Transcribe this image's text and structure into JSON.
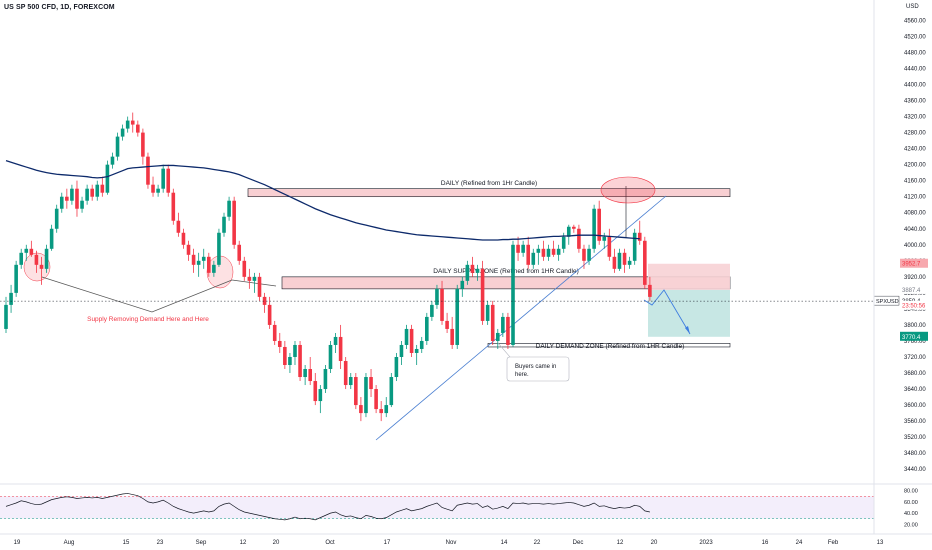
{
  "chart_data": {
    "type": "candlestick",
    "title": "US SP 500 CFD, 1D, FOREXCOM",
    "currency_label": "USD",
    "y_ticks": [
      3440,
      3480,
      3520,
      3560,
      3600,
      3640,
      3680,
      3720,
      3760,
      3800,
      3840,
      3880,
      3920,
      3960,
      4000,
      4040,
      4080,
      4120,
      4160,
      4200,
      4240,
      4280,
      4320,
      4360,
      4400,
      4440,
      4480,
      4520,
      4560
    ],
    "y_range": [
      3400,
      4600
    ],
    "x_ticks": [
      "19",
      "Aug",
      "15",
      "23",
      "Sep",
      "12",
      "20",
      "Oct",
      "17",
      "Nov",
      "14",
      "22",
      "Dec",
      "12",
      "20",
      "2023",
      "16",
      "24",
      "Feb",
      "13"
    ],
    "candles": [
      [
        3790,
        3870,
        3780,
        3850
      ],
      [
        3850,
        3900,
        3830,
        3880
      ],
      [
        3880,
        3960,
        3870,
        3950
      ],
      [
        3950,
        3990,
        3940,
        3980
      ],
      [
        3980,
        4000,
        3960,
        3990
      ],
      [
        3990,
        4010,
        3970,
        3975
      ],
      [
        3975,
        3985,
        3930,
        3950
      ],
      [
        3950,
        3970,
        3900,
        3940
      ],
      [
        3940,
        4000,
        3930,
        3990
      ],
      [
        3990,
        4050,
        3985,
        4040
      ],
      [
        4040,
        4100,
        4030,
        4090
      ],
      [
        4090,
        4130,
        4080,
        4120
      ],
      [
        4120,
        4140,
        4090,
        4110
      ],
      [
        4110,
        4150,
        4100,
        4140
      ],
      [
        4140,
        4160,
        4070,
        4090
      ],
      [
        4090,
        4120,
        4080,
        4110
      ],
      [
        4110,
        4150,
        4100,
        4140
      ],
      [
        4140,
        4150,
        4110,
        4120
      ],
      [
        4120,
        4160,
        4110,
        4150
      ],
      [
        4150,
        4170,
        4120,
        4130
      ],
      [
        4130,
        4210,
        4125,
        4200
      ],
      [
        4200,
        4230,
        4190,
        4220
      ],
      [
        4220,
        4280,
        4210,
        4270
      ],
      [
        4270,
        4300,
        4260,
        4290
      ],
      [
        4290,
        4320,
        4280,
        4310
      ],
      [
        4310,
        4330,
        4280,
        4300
      ],
      [
        4300,
        4310,
        4270,
        4280
      ],
      [
        4280,
        4290,
        4200,
        4220
      ],
      [
        4220,
        4230,
        4140,
        4150
      ],
      [
        4150,
        4170,
        4120,
        4130
      ],
      [
        4130,
        4150,
        4120,
        4140
      ],
      [
        4140,
        4200,
        4130,
        4190
      ],
      [
        4190,
        4200,
        4120,
        4130
      ],
      [
        4130,
        4140,
        4050,
        4060
      ],
      [
        4060,
        4080,
        4020,
        4030
      ],
      [
        4030,
        4040,
        3990,
        4000
      ],
      [
        4000,
        4010,
        3960,
        3975
      ],
      [
        3975,
        3990,
        3930,
        3950
      ],
      [
        3950,
        3980,
        3920,
        3960
      ],
      [
        3960,
        3990,
        3940,
        3970
      ],
      [
        3970,
        3980,
        3920,
        3930
      ],
      [
        3930,
        3960,
        3920,
        3950
      ],
      [
        3950,
        4040,
        3945,
        4030
      ],
      [
        4030,
        4080,
        4020,
        4070
      ],
      [
        4070,
        4120,
        4060,
        4110
      ],
      [
        4110,
        4120,
        3990,
        4000
      ],
      [
        4000,
        4010,
        3950,
        3960
      ],
      [
        3960,
        3970,
        3910,
        3920
      ],
      [
        3920,
        3940,
        3890,
        3910
      ],
      [
        3910,
        3930,
        3880,
        3920
      ],
      [
        3920,
        3930,
        3860,
        3870
      ],
      [
        3870,
        3880,
        3830,
        3850
      ],
      [
        3850,
        3870,
        3790,
        3800
      ],
      [
        3800,
        3810,
        3750,
        3760
      ],
      [
        3760,
        3780,
        3730,
        3745
      ],
      [
        3745,
        3760,
        3690,
        3700
      ],
      [
        3700,
        3730,
        3680,
        3720
      ],
      [
        3720,
        3760,
        3700,
        3750
      ],
      [
        3750,
        3760,
        3660,
        3670
      ],
      [
        3670,
        3700,
        3650,
        3690
      ],
      [
        3690,
        3720,
        3650,
        3660
      ],
      [
        3660,
        3680,
        3600,
        3610
      ],
      [
        3610,
        3650,
        3580,
        3640
      ],
      [
        3640,
        3700,
        3630,
        3690
      ],
      [
        3690,
        3760,
        3680,
        3750
      ],
      [
        3750,
        3780,
        3730,
        3770
      ],
      [
        3770,
        3800,
        3690,
        3710
      ],
      [
        3710,
        3720,
        3640,
        3650
      ],
      [
        3650,
        3680,
        3640,
        3670
      ],
      [
        3670,
        3680,
        3590,
        3600
      ],
      [
        3600,
        3620,
        3560,
        3580
      ],
      [
        3580,
        3680,
        3570,
        3670
      ],
      [
        3670,
        3690,
        3620,
        3640
      ],
      [
        3640,
        3650,
        3580,
        3590
      ],
      [
        3590,
        3610,
        3560,
        3580
      ],
      [
        3580,
        3620,
        3570,
        3600
      ],
      [
        3600,
        3680,
        3595,
        3670
      ],
      [
        3670,
        3730,
        3660,
        3720
      ],
      [
        3720,
        3760,
        3700,
        3750
      ],
      [
        3750,
        3800,
        3740,
        3790
      ],
      [
        3790,
        3800,
        3720,
        3730
      ],
      [
        3730,
        3750,
        3700,
        3740
      ],
      [
        3740,
        3770,
        3730,
        3760
      ],
      [
        3760,
        3830,
        3750,
        3820
      ],
      [
        3820,
        3860,
        3810,
        3850
      ],
      [
        3850,
        3900,
        3840,
        3890
      ],
      [
        3890,
        3910,
        3800,
        3810
      ],
      [
        3810,
        3830,
        3780,
        3790
      ],
      [
        3790,
        3820,
        3740,
        3750
      ],
      [
        3750,
        3900,
        3740,
        3890
      ],
      [
        3890,
        3920,
        3870,
        3910
      ],
      [
        3910,
        3960,
        3900,
        3950
      ],
      [
        3950,
        3970,
        3920,
        3930
      ],
      [
        3930,
        3950,
        3910,
        3940
      ],
      [
        3940,
        3960,
        3800,
        3810
      ],
      [
        3810,
        3860,
        3800,
        3850
      ],
      [
        3850,
        3860,
        3750,
        3760
      ],
      [
        3760,
        3790,
        3740,
        3780
      ],
      [
        3780,
        3830,
        3770,
        3820
      ],
      [
        3820,
        3830,
        3740,
        3750
      ],
      [
        3750,
        4010,
        3745,
        4000
      ],
      [
        4000,
        4020,
        3960,
        3980
      ],
      [
        3980,
        4010,
        3970,
        4000
      ],
      [
        4000,
        4020,
        3940,
        3950
      ],
      [
        3950,
        3990,
        3940,
        3980
      ],
      [
        3980,
        4000,
        3950,
        3990
      ],
      [
        3990,
        4010,
        3960,
        3970
      ],
      [
        3970,
        4000,
        3960,
        3990
      ],
      [
        3990,
        4010,
        3970,
        3975
      ],
      [
        3975,
        4000,
        3960,
        3990
      ],
      [
        3990,
        4030,
        3980,
        4020
      ],
      [
        4020,
        4050,
        4000,
        4045
      ],
      [
        4045,
        4050,
        4030,
        4040
      ],
      [
        4040,
        4050,
        3980,
        3990
      ],
      [
        3990,
        4000,
        3940,
        3960
      ],
      [
        3960,
        4000,
        3950,
        3990
      ],
      [
        3990,
        4100,
        3980,
        4090
      ],
      [
        4090,
        4110,
        4000,
        4010
      ],
      [
        4010,
        4030,
        3990,
        4020
      ],
      [
        4020,
        4040,
        3960,
        3970
      ],
      [
        3970,
        3990,
        3930,
        3940
      ],
      [
        3940,
        3990,
        3935,
        3980
      ],
      [
        3980,
        3990,
        3930,
        3950
      ],
      [
        3950,
        3970,
        3940,
        3960
      ],
      [
        3960,
        4040,
        3950,
        4030
      ],
      [
        4030,
        4060,
        4000,
        4010
      ],
      [
        4010,
        4020,
        3890,
        3900
      ],
      [
        3900,
        3920,
        3860,
        3870
      ]
    ],
    "series": [
      {
        "name": "",
        "values": [
          4210,
          4206,
          4202,
          4198,
          4194,
          4190,
          4186,
          4183,
          4180,
          4178,
          4176,
          4175,
          4174,
          4173,
          4172,
          4171,
          4170,
          4168,
          4167,
          4168,
          4170,
          4175,
          4180,
          4185,
          4190,
          4192,
          4193,
          4194,
          4195,
          4196,
          4197,
          4198,
          4198,
          4198,
          4197,
          4196,
          4195,
          4194,
          4193,
          4192,
          4190,
          4188,
          4186,
          4184,
          4182,
          4179,
          4175,
          4170,
          4165,
          4160,
          4155,
          4150,
          4144,
          4138,
          4132,
          4126,
          4120,
          4114,
          4108,
          4102,
          4096,
          4090,
          4085,
          4080,
          4075,
          4071,
          4067,
          4063,
          4059,
          4055,
          4052,
          4049,
          4046,
          4043,
          4040,
          4037,
          4035,
          4033,
          4031,
          4029,
          4027,
          4025,
          4024,
          4023,
          4022,
          4021,
          4020,
          4019,
          4018,
          4017,
          4016,
          4015,
          4014,
          4013,
          4012,
          4012,
          4012,
          4012,
          4013,
          4013,
          4014,
          4014,
          4015,
          4016,
          4017,
          4018,
          4019,
          4020,
          4021,
          4021,
          4022,
          4022,
          4023,
          4024,
          4024,
          4024,
          4024,
          4023,
          4022,
          4021,
          4020,
          4019,
          4018,
          4017,
          4016,
          4015
        ]
      }
    ],
    "zones": [
      {
        "label": "DAILY (Refined from 1Hr Candle)",
        "top": 4140,
        "bottom": 4120
      },
      {
        "label": "DAILY SUPPLY ZONE (Refined from 1HR Candle)",
        "top": 3920,
        "bottom": 3890
      },
      {
        "label": "DAILY DEMAND ZONE (Refined from 1HR Candle)",
        "top": 3754,
        "bottom": 3745
      }
    ],
    "annotations": [
      "Supply Removing Demand Here and Here",
      "Buyers came in here."
    ],
    "position": {
      "entry": 3887.4,
      "stop": 3952.7,
      "target": 3770.4
    },
    "price_labels": [
      {
        "text": "3952.7",
        "price": 3952.7,
        "color": "#f23645"
      },
      {
        "text": "3887.4",
        "price": 3887.4,
        "color": "#787b86"
      },
      {
        "text": "SPXUSD",
        "price": 3859.4,
        "color": "#131722"
      },
      {
        "text": "3859.4",
        "price": 3859.4,
        "color": "#131722"
      },
      {
        "text": "23:50:56",
        "price": 3848,
        "color": "#f23645"
      },
      {
        "text": "3770.4",
        "price": 3770.4,
        "color": "#089981"
      }
    ],
    "current_price": 3859.4,
    "rsi": {
      "upper": 70,
      "lower": 30,
      "ticks": [
        "80.00",
        "60.00",
        "40.00",
        "20.00"
      ],
      "values": [
        52,
        55,
        58,
        62,
        60,
        57,
        55,
        56,
        60,
        64,
        66,
        68,
        69,
        68,
        66,
        67,
        68,
        67,
        68,
        66,
        68,
        70,
        72,
        74,
        75,
        73,
        71,
        66,
        60,
        58,
        60,
        63,
        58,
        52,
        48,
        45,
        42,
        40,
        42,
        44,
        42,
        44,
        52,
        56,
        58,
        52,
        46,
        42,
        40,
        38,
        36,
        34,
        32,
        30,
        29,
        28,
        30,
        33,
        30,
        31,
        30,
        28,
        32,
        36,
        40,
        42,
        37,
        34,
        35,
        32,
        30,
        36,
        34,
        31,
        30,
        32,
        37,
        42,
        45,
        48,
        44,
        46,
        48,
        52,
        55,
        58,
        50,
        47,
        44,
        54,
        56,
        58,
        56,
        57,
        50,
        53,
        47,
        49,
        52,
        48,
        58,
        57,
        58,
        56,
        57,
        57,
        56,
        57,
        56,
        57,
        58,
        59,
        58,
        55,
        52,
        54,
        58,
        52,
        53,
        50,
        48,
        50,
        49,
        50,
        54,
        52,
        44,
        42
      ]
    }
  }
}
